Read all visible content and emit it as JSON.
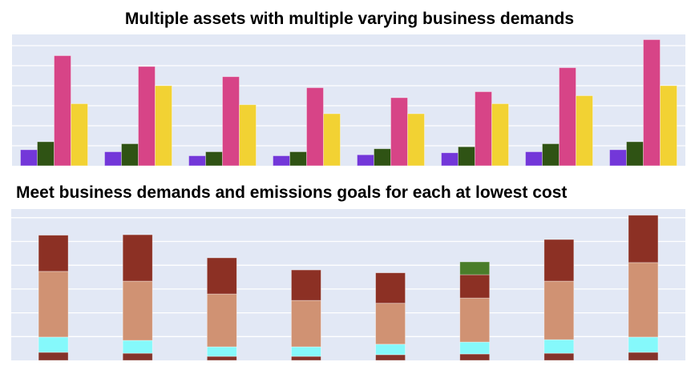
{
  "chart_data": [
    {
      "type": "bar",
      "title": "Multiple assets with multiple varying business demands",
      "xlabel": "",
      "ylabel": "",
      "categories": [
        "",
        "",
        "",
        "",
        "",
        "",
        "",
        ""
      ],
      "ylim": [
        0,
        6.56
      ],
      "grid": true,
      "background": "#e2e8f5",
      "series": [
        {
          "name": "",
          "color": "#7337d9",
          "values": [
            0.8,
            0.7,
            0.5,
            0.5,
            0.55,
            0.65,
            0.7,
            0.8
          ]
        },
        {
          "name": "",
          "color": "#2f5314",
          "values": [
            1.2,
            1.1,
            0.7,
            0.7,
            0.85,
            0.95,
            1.1,
            1.2
          ]
        },
        {
          "name": "",
          "color": "#d74487",
          "values": [
            5.5,
            4.96,
            4.45,
            3.9,
            3.4,
            3.7,
            4.9,
            6.3
          ]
        },
        {
          "name": "",
          "color": "#f2d233",
          "values": [
            3.1,
            4.0,
            3.05,
            2.6,
            2.6,
            3.1,
            3.5,
            4.0
          ]
        }
      ]
    },
    {
      "type": "bar",
      "stacked": true,
      "title": "Meet business demands and emissions goals for each at lowest cost",
      "xlabel": "",
      "ylabel": "",
      "categories": [
        "",
        "",
        "",
        "",
        "",
        "",
        "",
        ""
      ],
      "ylim": [
        0,
        6.36
      ],
      "grid": true,
      "background": "#e2e8f5",
      "series": [
        {
          "name": "",
          "color": "#84332a",
          "values": [
            0.34,
            0.3,
            0.17,
            0.17,
            0.24,
            0.27,
            0.3,
            0.34
          ]
        },
        {
          "name": "",
          "color": "#85f9fb",
          "values": [
            0.64,
            0.54,
            0.4,
            0.4,
            0.44,
            0.5,
            0.57,
            0.64
          ]
        },
        {
          "name": "",
          "color": "#d09273",
          "values": [
            2.76,
            2.49,
            2.22,
            1.95,
            1.72,
            1.85,
            2.46,
            3.13
          ]
        },
        {
          "name": "",
          "color": "#8c3024",
          "values": [
            1.52,
            1.95,
            1.52,
            1.28,
            1.28,
            0.98,
            1.75,
            1.99
          ]
        },
        {
          "name": "",
          "color": "#4a7d2a",
          "values": [
            0,
            0,
            0,
            0,
            0,
            0.54,
            0,
            0
          ]
        }
      ]
    }
  ]
}
